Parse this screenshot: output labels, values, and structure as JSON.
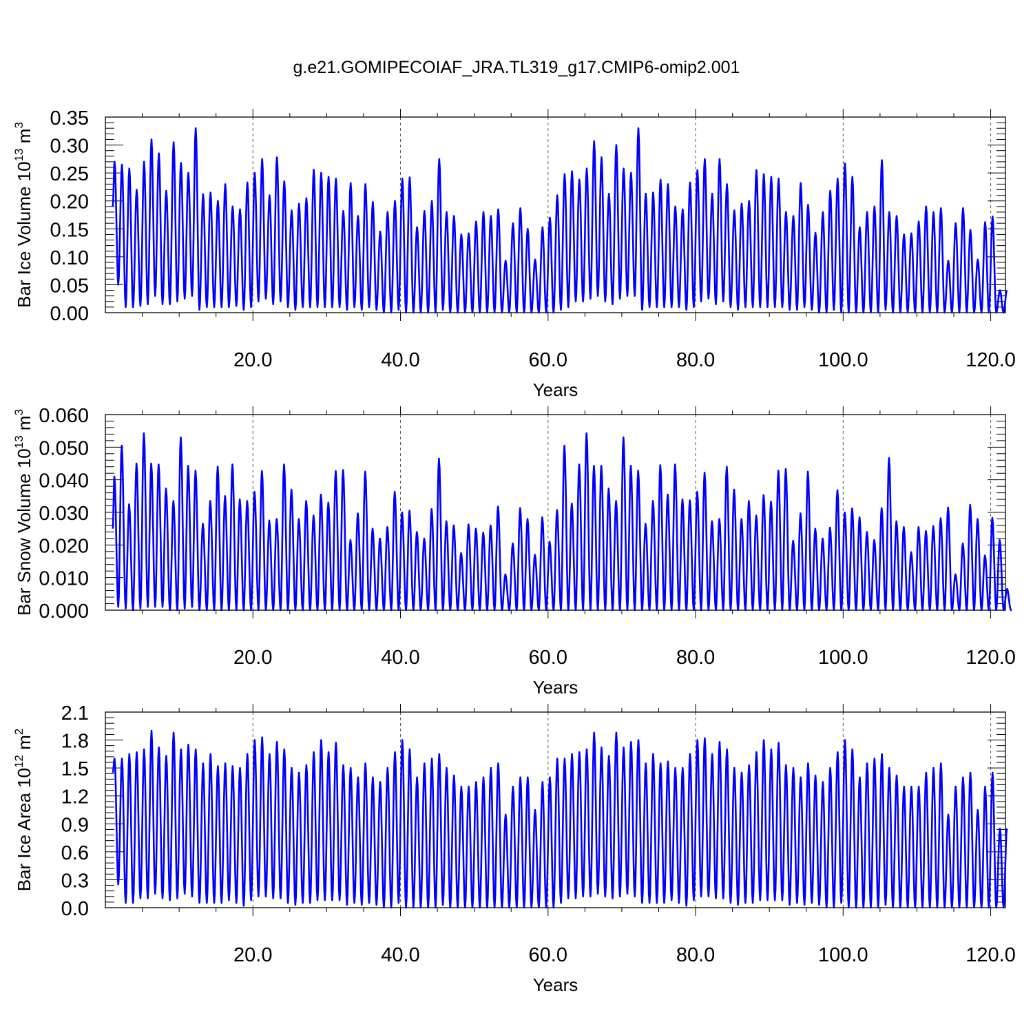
{
  "figure": {
    "title": "g.e21.GOMIPECOIAF_JRA.TL319_g17.CMIP6-omip2.001",
    "line_color": "#0000ff"
  },
  "chart_data": [
    {
      "type": "line",
      "title": "",
      "xlabel": "Years",
      "ylabel": {
        "prefix": "Bar Ice Volume 10",
        "exponent": "13",
        "unit": " m",
        "unit_exponent": "3"
      },
      "xlim": [
        0,
        122
      ],
      "ylim": [
        0,
        0.35
      ],
      "xticks": [
        20,
        40,
        60,
        80,
        100,
        120
      ],
      "xtick_labels": [
        "20.0",
        "40.0",
        "60.0",
        "80.0",
        "100.0",
        "120.0"
      ],
      "yticks": [
        0,
        0.05,
        0.1,
        0.15,
        0.2,
        0.25,
        0.3,
        0.35
      ],
      "ytick_labels": [
        "0.00",
        "0.05",
        "0.10",
        "0.15",
        "0.20",
        "0.25",
        "0.30",
        "0.35"
      ],
      "vertical_dashed_gridlines_at": [
        20,
        40,
        60,
        80,
        100,
        120
      ],
      "series": [
        {
          "color": "#0000ff",
          "annual_cycle": {
            "year_start": 1,
            "peak_phase": 0.25,
            "annual_max": [
              0.27,
              0.265,
              0.258,
              0.22,
              0.27,
              0.31,
              0.285,
              0.218,
              0.305,
              0.268,
              0.25,
              0.33,
              0.212,
              0.215,
              0.2,
              0.23,
              0.19,
              0.185,
              0.233,
              0.25,
              0.275,
              0.21,
              0.278,
              0.235,
              0.183,
              0.195,
              0.205,
              0.256,
              0.25,
              0.243,
              0.24,
              0.182,
              0.232,
              0.173,
              0.23,
              0.198,
              0.145,
              0.18,
              0.2,
              0.24,
              0.242,
              0.153,
              0.182,
              0.2,
              0.275,
              0.18,
              0.173,
              0.14,
              0.142,
              0.163,
              0.18,
              0.173,
              0.185,
              0.093,
              0.16,
              0.187,
              0.15,
              0.095,
              0.153,
              0.17,
              0.21,
              0.248,
              0.253,
              0.238,
              0.258,
              0.307,
              0.278,
              0.213,
              0.3,
              0.258,
              0.25,
              0.33,
              0.213,
              0.215,
              0.238,
              0.23,
              0.19,
              0.185,
              0.233,
              0.255,
              0.275,
              0.213,
              0.275,
              0.23,
              0.183,
              0.195,
              0.2,
              0.255,
              0.248,
              0.243,
              0.24,
              0.18,
              0.173,
              0.232,
              0.193,
              0.143,
              0.18,
              0.218,
              0.24,
              0.267,
              0.243,
              0.153,
              0.18,
              0.19,
              0.273,
              0.18,
              0.173,
              0.14,
              0.142,
              0.163,
              0.19,
              0.18,
              0.187,
              0.093,
              0.16,
              0.187,
              0.148,
              0.095,
              0.162,
              0.172,
              0.04
            ],
            "annual_min": [
              0.05,
              0.01,
              0.01,
              0.012,
              0.015,
              0.03,
              0.015,
              0.015,
              0.02,
              0.025,
              0.03,
              0.005,
              0.01,
              0.01,
              0.01,
              0.01,
              0.012,
              0.005,
              0.01,
              0.02,
              0.025,
              0.015,
              0.02,
              0.01,
              0.005,
              0.01,
              0.01,
              0.01,
              0.01,
              0.01,
              0.01,
              0.005,
              0.01,
              0.005,
              0.01,
              0.005,
              0.0,
              0.0,
              0.005,
              0.0,
              0.0,
              0.0,
              0.0,
              0.0,
              0.005,
              0.0,
              0.0,
              0.0,
              0.0,
              0.0,
              0.0,
              0.0,
              0.0,
              0.0,
              0.0,
              0.0,
              0.0,
              0.0,
              0.0,
              0.0,
              0.005,
              0.01,
              0.02,
              0.02,
              0.025,
              0.03,
              0.02,
              0.015,
              0.025,
              0.03,
              0.03,
              0.005,
              0.01,
              0.01,
              0.01,
              0.01,
              0.01,
              0.005,
              0.01,
              0.02,
              0.025,
              0.015,
              0.02,
              0.01,
              0.005,
              0.01,
              0.01,
              0.01,
              0.01,
              0.01,
              0.01,
              0.005,
              0.005,
              0.01,
              0.005,
              0.0,
              0.0,
              0.005,
              0.0,
              0.0,
              0.0,
              0.0,
              0.0,
              0.0,
              0.005,
              0.0,
              0.0,
              0.0,
              0.0,
              0.0,
              0.0,
              0.0,
              0.0,
              0.0,
              0.0,
              0.0,
              0.0,
              0.0,
              0.0,
              0.0,
              0.0
            ],
            "initial_value": 0.19,
            "end_x": 122.2,
            "end_value": 0.04
          }
        }
      ]
    },
    {
      "type": "line",
      "title": "",
      "xlabel": "Years",
      "ylabel": {
        "prefix": "Bar Snow Volume 10",
        "exponent": "13",
        "unit": " m",
        "unit_exponent": "3"
      },
      "xlim": [
        0,
        122
      ],
      "ylim": [
        0,
        0.06
      ],
      "xticks": [
        20,
        40,
        60,
        80,
        100,
        120
      ],
      "xtick_labels": [
        "20.0",
        "40.0",
        "60.0",
        "80.0",
        "100.0",
        "120.0"
      ],
      "yticks": [
        0,
        0.01,
        0.02,
        0.03,
        0.04,
        0.05,
        0.06
      ],
      "ytick_labels": [
        "0.000",
        "0.010",
        "0.020",
        "0.030",
        "0.040",
        "0.050",
        "0.060"
      ],
      "vertical_dashed_gridlines_at": [
        20,
        40,
        60,
        80,
        100,
        120
      ],
      "series": [
        {
          "color": "#0000ff",
          "annual_cycle": {
            "year_start": 1,
            "peak_phase": 0.22,
            "annual_max": [
              0.041,
              0.0505,
              0.0325,
              0.045,
              0.0543,
              0.045,
              0.0447,
              0.0373,
              0.0335,
              0.053,
              0.0443,
              0.0428,
              0.0265,
              0.0335,
              0.044,
              0.035,
              0.0447,
              0.034,
              0.0335,
              0.0363,
              0.0427,
              0.0275,
              0.028,
              0.0447,
              0.037,
              0.028,
              0.0335,
              0.029,
              0.0355,
              0.033,
              0.0427,
              0.043,
              0.0215,
              0.0297,
              0.0425,
              0.025,
              0.022,
              0.0255,
              0.0363,
              0.03,
              0.0305,
              0.024,
              0.022,
              0.031,
              0.0465,
              0.0273,
              0.026,
              0.0175,
              0.0263,
              0.025,
              0.0238,
              0.026,
              0.0318,
              0.011,
              0.0205,
              0.0313,
              0.028,
              0.017,
              0.0285,
              0.021,
              0.0307,
              0.0505,
              0.0327,
              0.0447,
              0.0543,
              0.0443,
              0.0443,
              0.0373,
              0.0335,
              0.053,
              0.0443,
              0.0428,
              0.0265,
              0.0335,
              0.0445,
              0.0355,
              0.0447,
              0.034,
              0.0337,
              0.0363,
              0.0422,
              0.0273,
              0.028,
              0.044,
              0.037,
              0.028,
              0.0335,
              0.029,
              0.0353,
              0.0333,
              0.0428,
              0.0433,
              0.0213,
              0.0297,
              0.0425,
              0.025,
              0.022,
              0.0253,
              0.0368,
              0.03,
              0.0312,
              0.0285,
              0.024,
              0.0215,
              0.0313,
              0.0467,
              0.0273,
              0.0255,
              0.0178,
              0.0255,
              0.0243,
              0.0258,
              0.0282,
              0.0315,
              0.011,
              0.0205,
              0.0323,
              0.028,
              0.0168,
              0.0283,
              0.0215,
              0.0065
            ],
            "annual_min": [
              0.001,
              0.0005,
              0.0,
              0.0005,
              0.001,
              0.001,
              0.001,
              0.0,
              0.0,
              0.0005,
              0.001,
              0.0,
              0.0,
              0.0,
              0.0,
              0.0,
              0.0,
              0.0,
              0.0,
              0.0,
              0.0,
              0.0,
              0.0,
              0.0,
              0.0,
              0.0,
              0.0,
              0.0,
              0.0,
              0.0,
              0.0,
              0.0,
              0.0,
              0.0,
              0.0,
              0.0,
              0.0,
              0.0,
              0.0,
              0.0,
              0.0,
              0.0,
              0.0,
              0.0,
              0.0,
              0.0,
              0.0,
              0.0,
              0.0,
              0.0,
              0.0,
              0.0,
              0.0,
              0.0,
              0.0,
              0.0,
              0.0,
              0.0,
              0.0,
              0.0,
              0.0,
              0.0,
              0.0,
              0.0,
              0.0,
              0.0,
              0.0,
              0.0,
              0.0,
              0.0,
              0.0,
              0.0,
              0.0,
              0.0,
              0.0,
              0.0,
              0.0,
              0.0,
              0.0,
              0.0,
              0.0,
              0.0,
              0.0,
              0.0,
              0.0,
              0.0,
              0.0,
              0.0,
              0.0,
              0.0,
              0.0,
              0.0,
              0.0,
              0.0,
              0.0,
              0.0,
              0.0,
              0.0,
              0.0,
              0.0,
              0.0,
              0.0,
              0.0,
              0.0,
              0.0,
              0.0,
              0.0,
              0.0,
              0.0,
              0.0,
              0.0,
              0.0,
              0.0,
              0.0,
              0.0,
              0.0,
              0.0,
              0.0,
              0.0,
              0.0,
              0.0,
              0.0
            ],
            "initial_value": 0.025,
            "end_x": 122.2,
            "end_value": 0.0065
          }
        }
      ]
    },
    {
      "type": "line",
      "title": "",
      "xlabel": "Years",
      "ylabel": {
        "prefix": "Bar Ice Area 10",
        "exponent": "12",
        "unit": " m",
        "unit_exponent": "2"
      },
      "xlim": [
        0,
        122
      ],
      "ylim": [
        0,
        2.1
      ],
      "xticks": [
        20,
        40,
        60,
        80,
        100,
        120
      ],
      "xtick_labels": [
        "20.0",
        "40.0",
        "60.0",
        "80.0",
        "100.0",
        "120.0"
      ],
      "yticks": [
        0,
        0.3,
        0.6,
        0.9,
        1.2,
        1.5,
        1.8,
        2.1
      ],
      "ytick_labels": [
        "0.0",
        "0.3",
        "0.6",
        "0.9",
        "1.2",
        "1.5",
        "1.8",
        "2.1"
      ],
      "vertical_dashed_gridlines_at": [
        20,
        40,
        60,
        80,
        100,
        120
      ],
      "series": [
        {
          "color": "#0000ff",
          "annual_cycle": {
            "year_start": 1,
            "peak_phase": 0.25,
            "annual_max": [
              1.6,
              1.6,
              1.65,
              1.67,
              1.7,
              1.9,
              1.72,
              1.63,
              1.88,
              1.7,
              1.75,
              1.7,
              1.55,
              1.65,
              1.52,
              1.55,
              1.52,
              1.5,
              1.65,
              1.8,
              1.83,
              1.65,
              1.78,
              1.7,
              1.5,
              1.45,
              1.53,
              1.67,
              1.8,
              1.67,
              1.77,
              1.53,
              1.5,
              1.4,
              1.55,
              1.4,
              1.35,
              1.5,
              1.67,
              1.8,
              1.7,
              1.4,
              1.55,
              1.6,
              1.65,
              1.5,
              1.42,
              1.3,
              1.3,
              1.35,
              1.4,
              1.5,
              1.55,
              1.0,
              1.3,
              1.4,
              1.4,
              1.05,
              1.35,
              1.4,
              1.6,
              1.6,
              1.65,
              1.67,
              1.7,
              1.88,
              1.72,
              1.63,
              1.88,
              1.72,
              1.78,
              1.8,
              1.55,
              1.65,
              1.55,
              1.57,
              1.5,
              1.5,
              1.65,
              1.8,
              1.82,
              1.65,
              1.78,
              1.7,
              1.5,
              1.45,
              1.53,
              1.67,
              1.8,
              1.7,
              1.77,
              1.53,
              1.5,
              1.4,
              1.55,
              1.42,
              1.35,
              1.5,
              1.67,
              1.8,
              1.7,
              1.4,
              1.55,
              1.6,
              1.65,
              1.5,
              1.42,
              1.3,
              1.3,
              1.3,
              1.45,
              1.5,
              1.55,
              1.0,
              1.3,
              1.4,
              1.45,
              1.05,
              1.3,
              1.45,
              0.85
            ],
            "annual_min": [
              0.25,
              0.05,
              0.05,
              0.1,
              0.1,
              0.15,
              0.1,
              0.08,
              0.1,
              0.15,
              0.12,
              0.05,
              0.05,
              0.05,
              0.05,
              0.08,
              0.05,
              0.02,
              0.08,
              0.12,
              0.12,
              0.1,
              0.1,
              0.05,
              0.03,
              0.05,
              0.05,
              0.08,
              0.08,
              0.08,
              0.08,
              0.03,
              0.05,
              0.03,
              0.05,
              0.03,
              0.0,
              0.0,
              0.05,
              0.0,
              0.0,
              0.0,
              0.0,
              0.0,
              0.03,
              0.0,
              0.0,
              0.0,
              0.0,
              0.0,
              0.0,
              0.0,
              0.0,
              0.0,
              0.0,
              0.0,
              0.0,
              0.0,
              0.0,
              0.0,
              0.05,
              0.1,
              0.1,
              0.12,
              0.12,
              0.15,
              0.12,
              0.1,
              0.12,
              0.15,
              0.12,
              0.05,
              0.05,
              0.05,
              0.05,
              0.08,
              0.05,
              0.02,
              0.08,
              0.12,
              0.12,
              0.1,
              0.1,
              0.05,
              0.03,
              0.05,
              0.05,
              0.08,
              0.08,
              0.08,
              0.08,
              0.03,
              0.05,
              0.03,
              0.05,
              0.03,
              0.0,
              0.0,
              0.05,
              0.0,
              0.0,
              0.0,
              0.0,
              0.0,
              0.03,
              0.0,
              0.0,
              0.0,
              0.0,
              0.0,
              0.0,
              0.0,
              0.0,
              0.0,
              0.0,
              0.0,
              0.0,
              0.0,
              0.0,
              0.0,
              0.0
            ],
            "initial_value": 1.45,
            "end_x": 122.2,
            "end_value": 0.85
          }
        }
      ]
    }
  ]
}
